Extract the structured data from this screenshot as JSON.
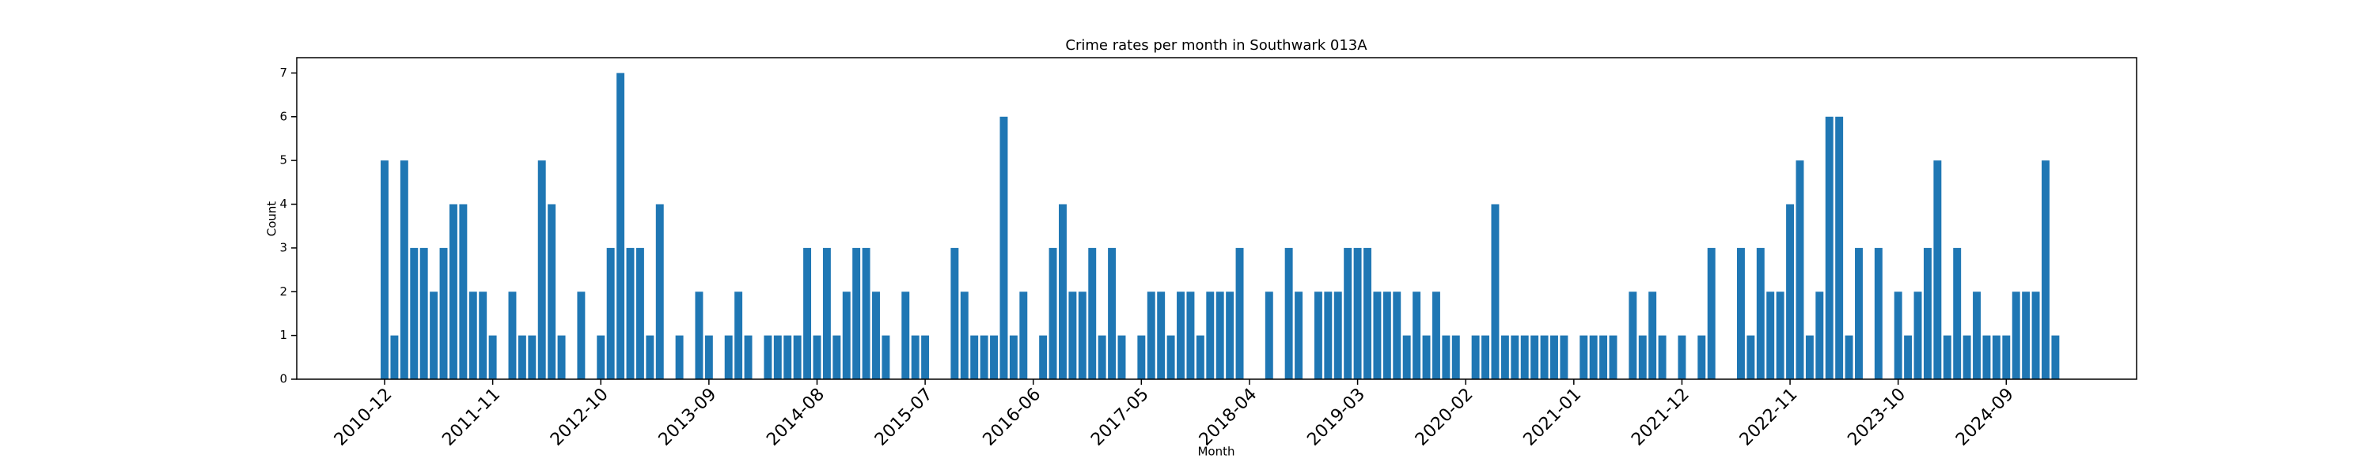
{
  "chart_data": {
    "type": "bar",
    "title": "Crime rates per month in Southwark 013A",
    "xlabel": "Month",
    "ylabel": "Count",
    "color": "#1f77b4",
    "categories": [
      "2010-12",
      null,
      null,
      null,
      null,
      null,
      null,
      null,
      null,
      null,
      null,
      "2011-11",
      null,
      null,
      null,
      null,
      null,
      null,
      null,
      null,
      null,
      null,
      "2012-10",
      null,
      null,
      null,
      null,
      null,
      null,
      null,
      null,
      null,
      null,
      "2013-09",
      null,
      null,
      null,
      null,
      null,
      null,
      null,
      null,
      null,
      null,
      "2014-08",
      null,
      null,
      null,
      null,
      null,
      null,
      null,
      null,
      null,
      null,
      "2015-07",
      null,
      null,
      null,
      null,
      null,
      null,
      null,
      null,
      null,
      null,
      "2016-06",
      null,
      null,
      null,
      null,
      null,
      null,
      null,
      null,
      null,
      null,
      "2017-05",
      null,
      null,
      null,
      null,
      null,
      null,
      null,
      null,
      null,
      null,
      "2018-04",
      null,
      null,
      null,
      null,
      null,
      null,
      null,
      null,
      null,
      null,
      "2019-03",
      null,
      null,
      null,
      null,
      null,
      null,
      null,
      null,
      null,
      null,
      "2020-02",
      null,
      null,
      null,
      null,
      null,
      null,
      null,
      null,
      null,
      null,
      "2021-01",
      null,
      null,
      null,
      null,
      null,
      null,
      null,
      null,
      null,
      null,
      "2021-12",
      null,
      null,
      null,
      null,
      null,
      null,
      null,
      null,
      null,
      null,
      "2022-11",
      null,
      null,
      null,
      null,
      null,
      null,
      null,
      null,
      null,
      null,
      "2023-10",
      null,
      null,
      null,
      null,
      null,
      null,
      null,
      null,
      null,
      null,
      "2024-09",
      null,
      null,
      null,
      null,
      null
    ],
    "values": [
      5,
      1,
      5,
      3,
      3,
      2,
      3,
      4,
      4,
      2,
      2,
      1,
      0,
      2,
      1,
      1,
      5,
      4,
      1,
      0,
      2,
      0,
      1,
      3,
      7,
      3,
      3,
      1,
      4,
      0,
      1,
      0,
      2,
      1,
      0,
      1,
      2,
      1,
      0,
      1,
      1,
      1,
      1,
      3,
      1,
      3,
      1,
      2,
      3,
      3,
      2,
      1,
      0,
      2,
      1,
      1,
      0,
      0,
      3,
      2,
      1,
      1,
      1,
      6,
      1,
      2,
      0,
      1,
      3,
      4,
      2,
      2,
      3,
      1,
      3,
      1,
      0,
      1,
      2,
      2,
      1,
      2,
      2,
      1,
      2,
      2,
      2,
      3,
      0,
      0,
      2,
      0,
      3,
      2,
      0,
      2,
      2,
      2,
      3,
      3,
      3,
      2,
      2,
      2,
      1,
      2,
      1,
      2,
      1,
      1,
      0,
      1,
      1,
      4,
      1,
      1,
      1,
      1,
      1,
      1,
      1,
      0,
      1,
      1,
      1,
      1,
      0,
      2,
      1,
      2,
      1,
      0,
      1,
      0,
      1,
      3,
      0,
      0,
      3,
      1,
      3,
      2,
      2,
      4,
      5,
      1,
      2,
      6,
      6,
      1,
      3,
      0,
      3,
      0,
      2,
      1,
      2,
      3,
      5,
      1,
      3,
      1,
      2,
      1,
      1,
      1,
      2,
      2,
      2,
      5,
      1
    ],
    "ylim": [
      0,
      7.35
    ],
    "yticks": [
      0,
      1,
      2,
      3,
      4,
      5,
      6,
      7
    ]
  }
}
